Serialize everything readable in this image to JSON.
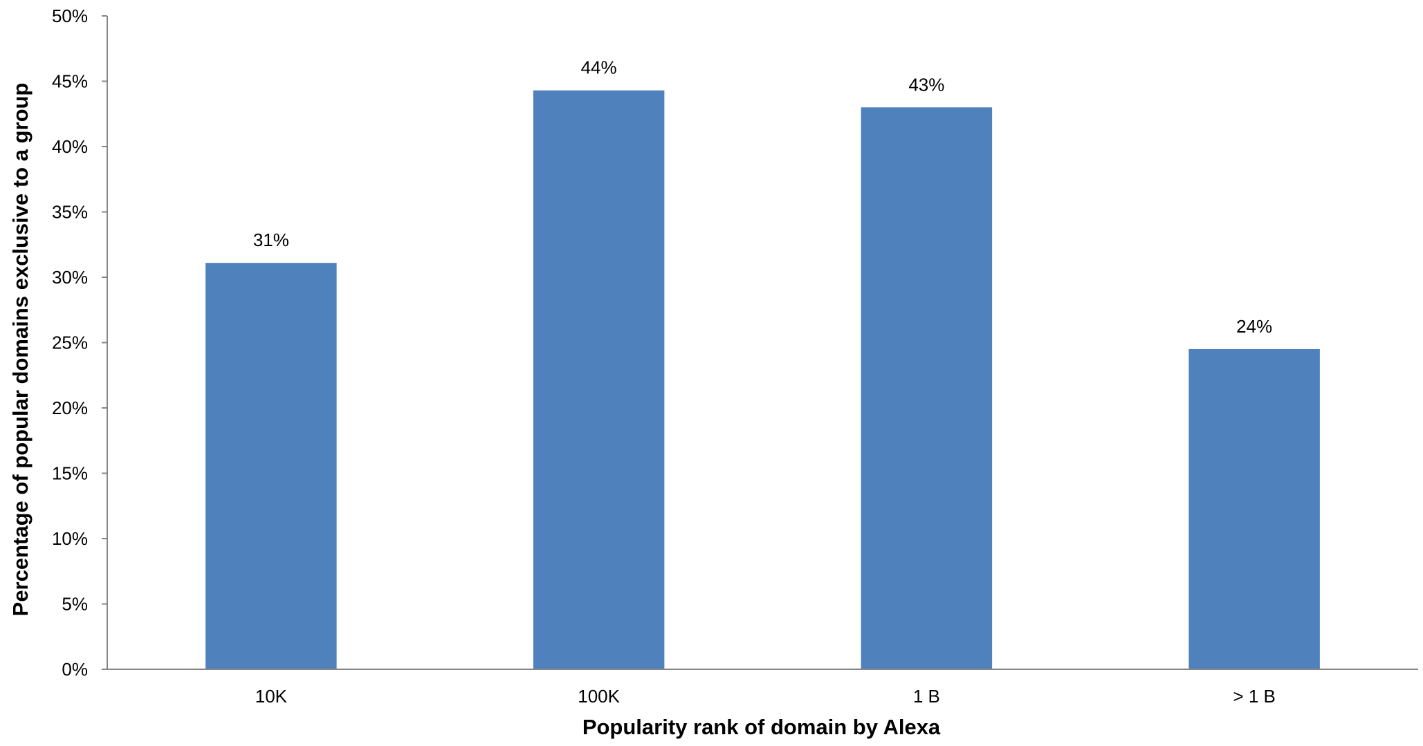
{
  "chart_data": {
    "type": "bar",
    "categories": [
      "10K",
      "100K",
      "1 B",
      "> 1 B"
    ],
    "values": [
      31.1,
      44.3,
      43.0,
      24.5
    ],
    "data_labels": [
      "31%",
      "44%",
      "43%",
      "24%"
    ],
    "title": "",
    "xlabel": "Popularity rank of domain by Alexa",
    "ylabel": "Percentage of popular domains exclusive to a group",
    "ylim": [
      0,
      50
    ],
    "yticks": [
      0,
      5,
      10,
      15,
      20,
      25,
      30,
      35,
      40,
      45,
      50
    ],
    "ytick_labels": [
      "0%",
      "5%",
      "10%",
      "15%",
      "20%",
      "25%",
      "30%",
      "35%",
      "40%",
      "45%",
      "50%"
    ],
    "grid": false,
    "legend": "none",
    "bar_color": "#4F81BD"
  }
}
